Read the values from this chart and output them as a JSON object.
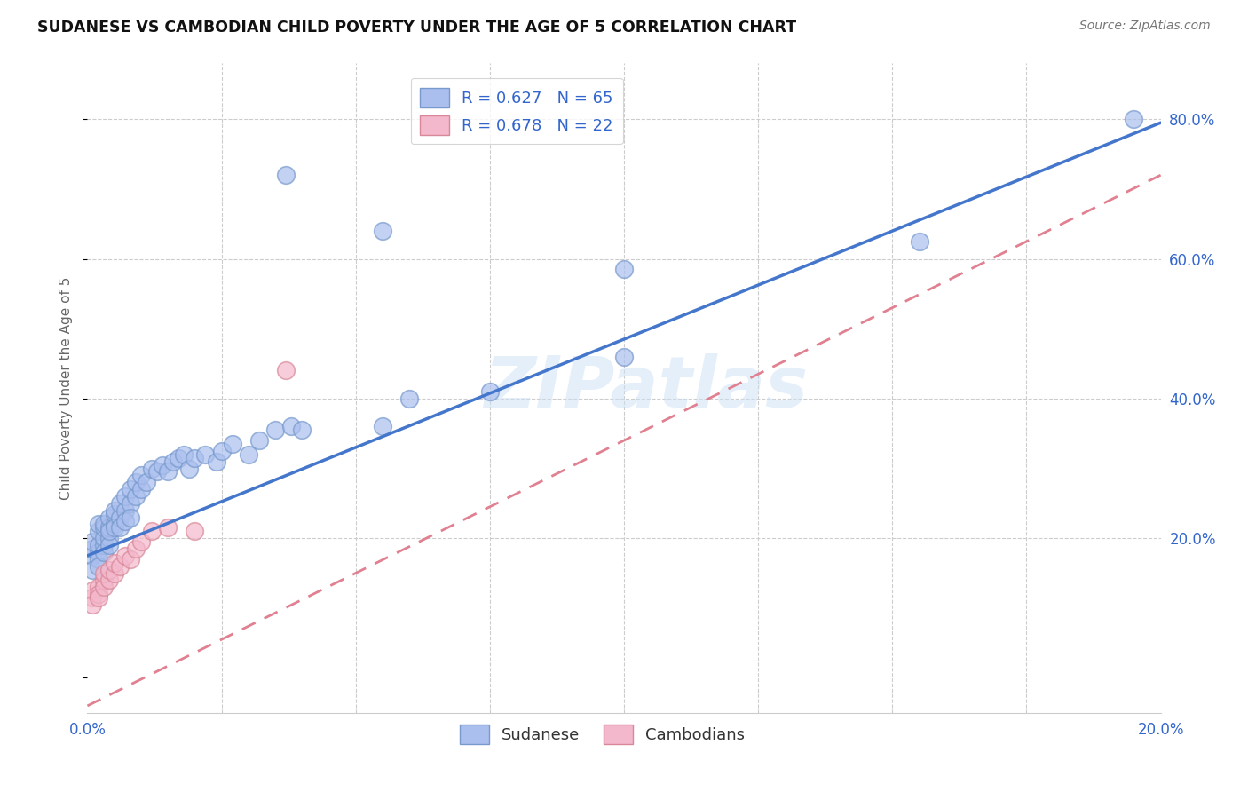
{
  "title": "SUDANESE VS CAMBODIAN CHILD POVERTY UNDER THE AGE OF 5 CORRELATION CHART",
  "source": "Source: ZipAtlas.com",
  "ylabel": "Child Poverty Under the Age of 5",
  "xlim": [
    0.0,
    0.2
  ],
  "ylim": [
    -0.05,
    0.88
  ],
  "yticks_right": [
    0.2,
    0.4,
    0.6,
    0.8
  ],
  "ytick_right_labels": [
    "20.0%",
    "40.0%",
    "60.0%",
    "80.0%"
  ],
  "grid_color": "#cccccc",
  "background_color": "#ffffff",
  "blue_scatter_color": "#aabfee",
  "blue_scatter_edge": "#7799cc",
  "pink_scatter_color": "#f4b8cc",
  "pink_scatter_edge": "#d88899",
  "blue_line_color": "#4477cc",
  "pink_line_color": "#e08090",
  "axis_label_color": "#3366cc",
  "legend_label1": "Sudanese",
  "legend_label2": "Cambodians",
  "watermark": "ZIPatlas",
  "blue_slope": 3.1,
  "blue_intercept": 0.175,
  "pink_slope": 3.8,
  "pink_intercept": -0.04,
  "sudanese_x": [
    0.001,
    0.001,
    0.001,
    0.001,
    0.002,
    0.002,
    0.002,
    0.002,
    0.002,
    0.002,
    0.003,
    0.003,
    0.003,
    0.003,
    0.003,
    0.004,
    0.004,
    0.004,
    0.004,
    0.004,
    0.005,
    0.005,
    0.005,
    0.005,
    0.006,
    0.006,
    0.006,
    0.007,
    0.007,
    0.007,
    0.008,
    0.008,
    0.008,
    0.009,
    0.009,
    0.01,
    0.01,
    0.011,
    0.012,
    0.013,
    0.014,
    0.015,
    0.016,
    0.017,
    0.018,
    0.019,
    0.02,
    0.022,
    0.024,
    0.025,
    0.027,
    0.03,
    0.032,
    0.035,
    0.038,
    0.04,
    0.055,
    0.06,
    0.075,
    0.1,
    0.037,
    0.055,
    0.1,
    0.155,
    0.195
  ],
  "sudanese_y": [
    0.175,
    0.185,
    0.195,
    0.155,
    0.18,
    0.19,
    0.21,
    0.17,
    0.16,
    0.22,
    0.19,
    0.2,
    0.215,
    0.22,
    0.18,
    0.2,
    0.215,
    0.23,
    0.19,
    0.21,
    0.22,
    0.235,
    0.215,
    0.24,
    0.23,
    0.25,
    0.215,
    0.24,
    0.26,
    0.225,
    0.25,
    0.27,
    0.23,
    0.26,
    0.28,
    0.27,
    0.29,
    0.28,
    0.3,
    0.295,
    0.305,
    0.295,
    0.31,
    0.315,
    0.32,
    0.3,
    0.315,
    0.32,
    0.31,
    0.325,
    0.335,
    0.32,
    0.34,
    0.355,
    0.36,
    0.355,
    0.36,
    0.4,
    0.41,
    0.46,
    0.72,
    0.64,
    0.585,
    0.625,
    0.8
  ],
  "cambodian_x": [
    0.001,
    0.001,
    0.001,
    0.002,
    0.002,
    0.002,
    0.003,
    0.003,
    0.003,
    0.004,
    0.004,
    0.005,
    0.005,
    0.006,
    0.007,
    0.008,
    0.009,
    0.01,
    0.012,
    0.015,
    0.037,
    0.02
  ],
  "cambodian_y": [
    0.115,
    0.125,
    0.105,
    0.13,
    0.12,
    0.115,
    0.14,
    0.13,
    0.15,
    0.14,
    0.155,
    0.15,
    0.165,
    0.16,
    0.175,
    0.17,
    0.185,
    0.195,
    0.21,
    0.215,
    0.44,
    0.21
  ]
}
